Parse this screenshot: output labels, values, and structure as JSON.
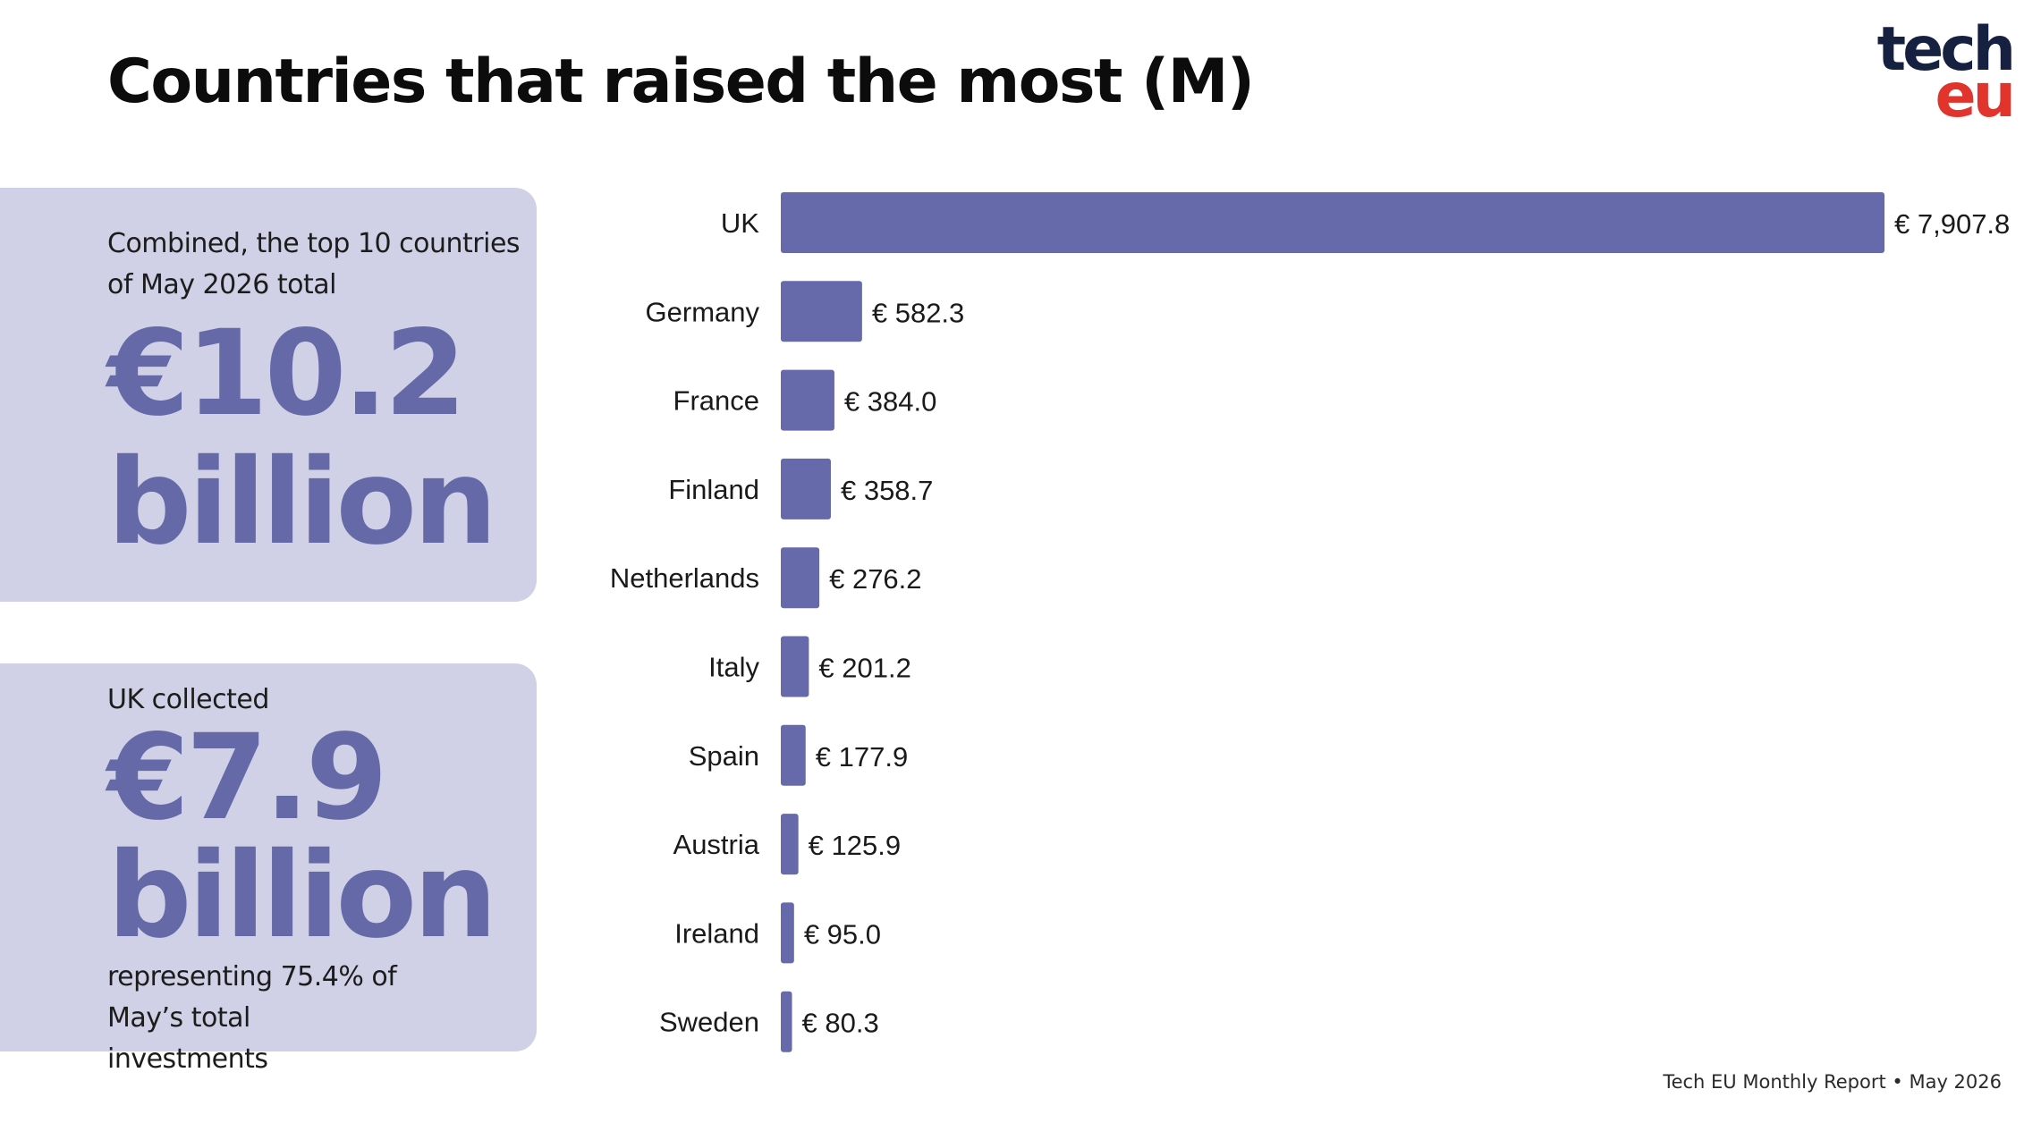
{
  "title": "Countries that raised the most (M)",
  "logo": {
    "line1": "tech",
    "line2": "eu"
  },
  "card_total": {
    "intro": "Combined, the top 10 countries of May 2026 total",
    "amount": "€10.2",
    "unit": "billion"
  },
  "card_uk": {
    "intro": "UK collected",
    "amount": "€7.9",
    "unit": "billion",
    "note": "representing 75.4% of May’s total investments"
  },
  "footer": "Tech EU Monthly Report • May 2026",
  "colors": {
    "bar": "#6669aa",
    "card_bg": "#d0d1e6",
    "big_text": "#6669a8",
    "logo_tech": "#162040",
    "logo_eu": "#e0342d"
  },
  "chart_data": {
    "type": "bar",
    "orientation": "horizontal",
    "categories": [
      "UK",
      "Germany",
      "France",
      "Finland",
      "Netherlands",
      "Italy",
      "Spain",
      "Austria",
      "Ireland",
      "Sweden"
    ],
    "values": [
      7907.8,
      582.3,
      384.0,
      358.7,
      276.2,
      201.2,
      177.9,
      125.9,
      95.0,
      80.3
    ],
    "value_labels": [
      "€ 7,907.8",
      "€ 582.3",
      "€ 384.0",
      "€ 358.7",
      "€ 276.2",
      "€ 201.2",
      "€ 177.9",
      "€ 125.9",
      "€ 95.0",
      "€ 80.3"
    ],
    "title": "Countries that raised the most (M)",
    "xlim": [
      0,
      7907.8
    ],
    "grid": false,
    "legend": "none"
  }
}
